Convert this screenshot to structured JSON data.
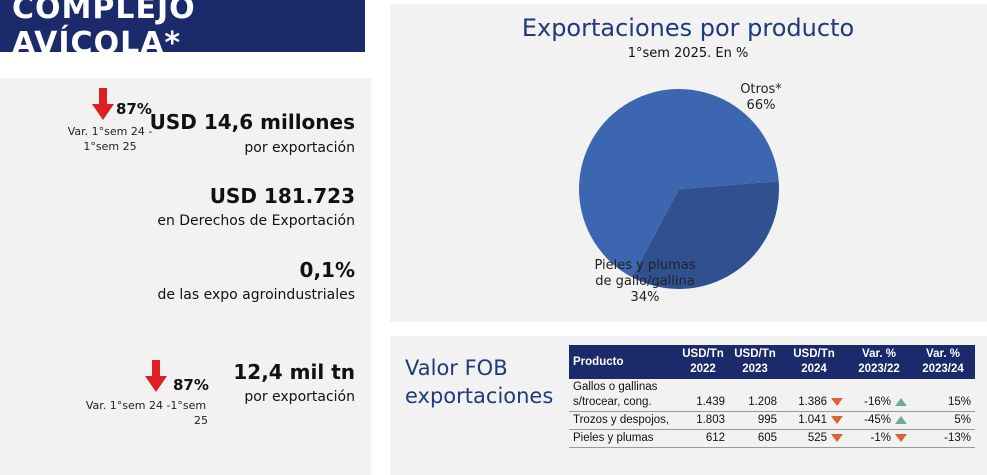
{
  "header": {
    "title": "COMPLEJO AVÍCOLA*"
  },
  "indicators": {
    "top": {
      "pct": "87%",
      "var_line1": "Var.  1°sem 24 -",
      "var_line2": "1°sem 25"
    },
    "value_usd": {
      "main": "USD 14,6 millones",
      "sub": "por exportación"
    },
    "derechos": {
      "main": "USD 181.723",
      "sub": "en Derechos de Exportación"
    },
    "share": {
      "main": "0,1%",
      "sub": "de las expo agroindustriales"
    },
    "bottom": {
      "pct": "87%",
      "var_line1": "Var.  1°sem 24 -1°sem",
      "var_line2": "25"
    },
    "volume": {
      "main": "12,4 mil tn",
      "sub": "por exportación"
    }
  },
  "chart_data": {
    "type": "pie",
    "title": "Exportaciones por producto",
    "subtitle": "1°sem 2025. En %",
    "slices": [
      {
        "label": "Otros*",
        "value": 66,
        "color": "#3d66b0"
      },
      {
        "label": "Pieles y plumas de gallo/gallina",
        "value": 34,
        "color": "#30508f"
      }
    ],
    "labels": {
      "otros_name": "Otros*",
      "otros_pct": "66%",
      "pieles_l1": "Pieles y plumas",
      "pieles_l2": "de gallo/gallina",
      "pieles_pct": "34%"
    }
  },
  "fob": {
    "title_l1": "Valor FOB",
    "title_l2": "exportaciones",
    "headers": {
      "producto": "Producto",
      "c2022_l1": "USD/Tn",
      "c2022_l2": "2022",
      "c2023_l1": "USD/Tn",
      "c2023_l2": "2023",
      "c2024_l1": "USD/Tn",
      "c2024_l2": "2024",
      "v1_l1": "Var. %",
      "v1_l2": "2023/22",
      "v2_l1": "Var. %",
      "v2_l2": "2023/24"
    },
    "rows": [
      {
        "prod_l1": "Gallos o gallinas",
        "prod_l2": "s/trocear, cong.",
        "y2022": "1.439",
        "y2023": "1.208",
        "y2024": "1.386",
        "v1": "-16%",
        "v1_dir": "down",
        "v2": "15%",
        "v2_dir": "up"
      },
      {
        "prod_l1": "Trozos y despojos,",
        "y2022": "1.803",
        "y2023": "995",
        "y2024": "1.041",
        "v1": "-45%",
        "v1_dir": "down",
        "v2": "5%",
        "v2_dir": "up"
      },
      {
        "prod_l1": "Pieles y plumas",
        "y2022": "612",
        "y2023": "605",
        "y2024": "525",
        "v1": "-1%",
        "v1_dir": "down",
        "v2": "-13%",
        "v2_dir": "down"
      }
    ]
  }
}
